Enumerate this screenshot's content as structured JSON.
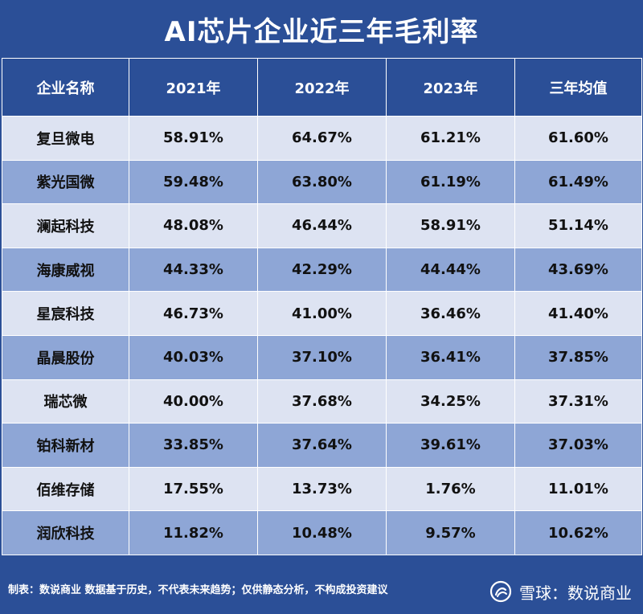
{
  "title": "AI芯片企业近三年毛利率",
  "table": {
    "headers": [
      "企业名称",
      "2021年",
      "2022年",
      "2023年",
      "三年均值"
    ],
    "rows": [
      [
        "复旦微电",
        "58.91%",
        "64.67%",
        "61.21%",
        "61.60%"
      ],
      [
        "紫光国微",
        "59.48%",
        "63.80%",
        "61.19%",
        "61.49%"
      ],
      [
        "澜起科技",
        "48.08%",
        "46.44%",
        "58.91%",
        "51.14%"
      ],
      [
        "海康威视",
        "44.33%",
        "42.29%",
        "44.44%",
        "43.69%"
      ],
      [
        "星宸科技",
        "46.73%",
        "41.00%",
        "36.46%",
        "41.40%"
      ],
      [
        "晶晨股份",
        "40.03%",
        "37.10%",
        "36.41%",
        "37.85%"
      ],
      [
        "瑞芯微",
        "40.00%",
        "37.68%",
        "34.25%",
        "37.31%"
      ],
      [
        "铂科新材",
        "33.85%",
        "37.64%",
        "39.61%",
        "37.03%"
      ],
      [
        "佰维存储",
        "17.55%",
        "13.73%",
        "1.76%",
        "11.01%"
      ],
      [
        "润欣科技",
        "11.82%",
        "10.48%",
        "9.57%",
        "10.62%"
      ]
    ]
  },
  "footer": {
    "note": "制表：数说商业 数据基于历史，不代表未来趋势；仅供静态分析，不构成投资建议",
    "watermark": "雪球：数说商业",
    "watermark_icon": "snowball-logo-icon"
  },
  "colors": {
    "background": "#2b4f97",
    "row_light": "#dde3f2",
    "row_dark": "#8ea6d6",
    "text_light": "#ffffff",
    "text_dark": "#111111"
  }
}
